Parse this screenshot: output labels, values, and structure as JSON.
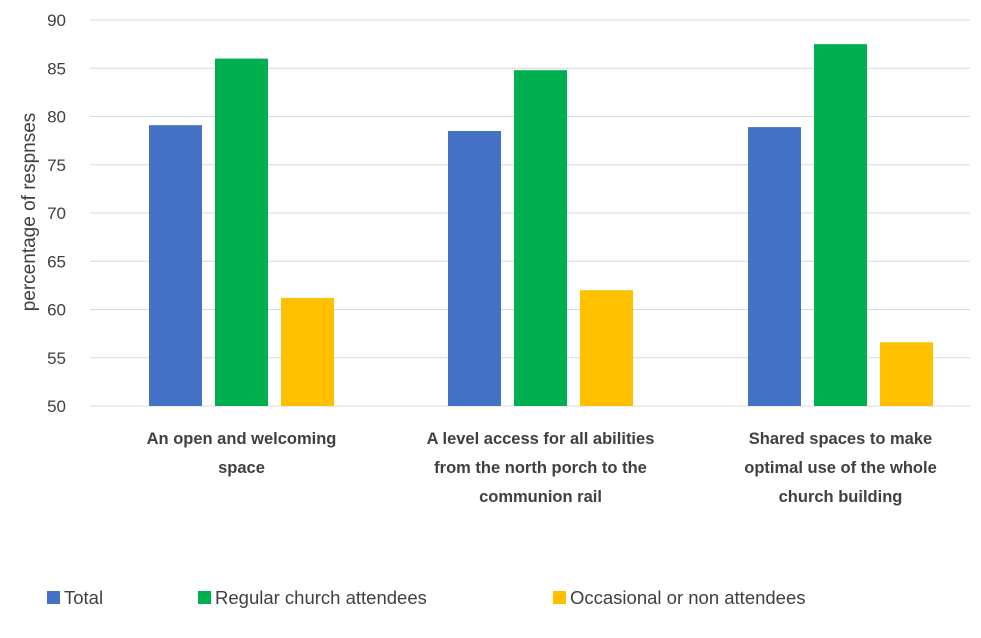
{
  "chart_data": {
    "type": "bar",
    "title": "",
    "xlabel": "",
    "ylabel": "percentage of respnses",
    "ylim": [
      50,
      90
    ],
    "yticks": [
      50,
      55,
      60,
      65,
      70,
      75,
      80,
      85,
      90
    ],
    "grid": true,
    "legend_position": "bottom",
    "categories": [
      [
        "An open and welcoming",
        "space"
      ],
      [
        "A level access for all abilities",
        "from the north porch to the",
        "communion rail"
      ],
      [
        "Shared spaces to make",
        "optimal use of the whole",
        "church building"
      ]
    ],
    "series": [
      {
        "name": "Total",
        "color": "#4472C4",
        "values": [
          79.1,
          78.5,
          78.9
        ]
      },
      {
        "name": "Regular church attendees",
        "color": "#00B050",
        "values": [
          86.0,
          84.8,
          87.5
        ]
      },
      {
        "name": "Occasional or non attendees",
        "color": "#FFC000",
        "values": [
          61.2,
          62.0,
          56.6
        ]
      }
    ]
  },
  "colors": {
    "gridline": "#d9d9d9",
    "text": "#404040"
  }
}
